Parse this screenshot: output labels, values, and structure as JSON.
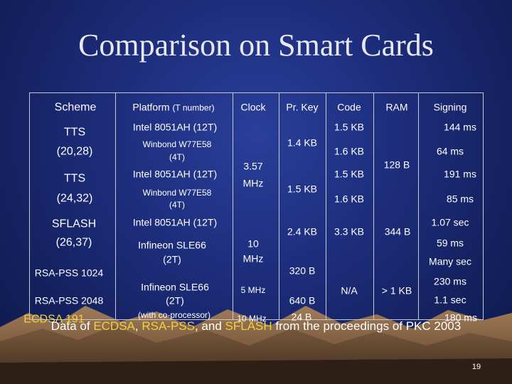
{
  "title": "Comparison on Smart Cards",
  "headers": {
    "scheme": "Scheme",
    "platform": "Platform",
    "platform_note": "(T number)",
    "clock": "Clock",
    "prkey": "Pr. Key",
    "code": "Code",
    "ram": "RAM",
    "signing": "Signing"
  },
  "rows": {
    "tts1_name": "TTS",
    "tts1_params": "(20,28)",
    "tts1_p1": "Intel 8051AH (12T)",
    "tts1_p2": "Winbond W77E58 (4T)",
    "tts1_p2_line1": "Winbond W77E58",
    "tts1_p2_line2": "(4T)",
    "tts1_code1": "1.5 KB",
    "tts1_code2": "1.6 KB",
    "tts1_sign1": "144 ms",
    "tts1_sign2": "64 ms",
    "tts_prkey1": "1.4 KB",
    "tts_clock_line1": "3.57",
    "tts_clock_line2": "MHz",
    "tts_ram": "128 B",
    "tts2_name": "TTS",
    "tts2_params": "(24,32)",
    "tts2_p1": "Intel 8051AH (12T)",
    "tts2_p2_line1": "Winbond W77E58",
    "tts2_p2_line2": "(4T)",
    "tts2_prkey": "1.5 KB",
    "tts2_code1": "1.5 KB",
    "tts2_code2": "1.6 KB",
    "tts2_sign1": "191 ms",
    "tts2_sign2": "85 ms",
    "sflash_name": "SFLASH",
    "sflash_params": "(26,37)",
    "sflash_p1": "Intel 8051AH (12T)",
    "sflash_p2_line1": "Infineon SLE66",
    "sflash_p2_line2": "(2T)",
    "sflash_clock_line1": "10",
    "sflash_clock_line2": "MHz",
    "sflash_prkey": "2.4 KB",
    "sflash_code": "3.3 KB",
    "sflash_ram": "344 B",
    "sflash_sign1": "1.07 sec",
    "sflash_sign2": "59 ms",
    "rsa1024_name": "RSA-PSS 1024",
    "rsa1024_sign": "Many sec",
    "rsa1024_prkey": "320 B",
    "rsa2048_name": "RSA-PSS 2048",
    "rsa_p_line1": "Infineon SLE66",
    "rsa_p_line2": "(2T)",
    "rsa_clock": "5 MHz",
    "rsa2048_prkey": "640 B",
    "rsa_code": "N/A",
    "rsa_ram": "> 1 KB",
    "rsa2048_sign1": "230 ms",
    "rsa2048_sign2": "1.1 sec",
    "ecdsa_name": "ECDSA 191",
    "ecdsa_p": "(with co-processor)",
    "ecdsa_clock": "10 MHz",
    "ecdsa_prkey": "24 B",
    "ecdsa_sign": "180 ms"
  },
  "footer": {
    "prefix": "Data of ",
    "ecdsa": "ECDSA",
    "sep1": ", ",
    "rsapss": "RSA-PSS",
    "sep2": ", and ",
    "sflash": "SFLASH",
    "suffix": " from the proceedings of PKC 2003"
  },
  "page_number": "19",
  "colors": {
    "accent_yellow": "#f0d040",
    "background": "#1d2d7c"
  }
}
